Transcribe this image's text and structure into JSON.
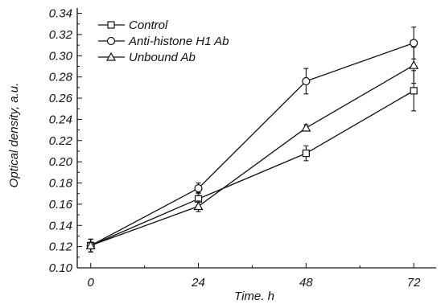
{
  "chart_data": {
    "type": "line",
    "title": "",
    "xlabel": "Time. h",
    "ylabel": "Optical density, a.u.",
    "x": [
      0,
      24,
      48,
      72
    ],
    "x_ticks": [
      "0",
      "24",
      "48",
      "72"
    ],
    "xlim": [
      -3,
      77
    ],
    "ylim": [
      0.1,
      0.345
    ],
    "y_ticks": [
      "0.10",
      "0.12",
      "0.14",
      "0.16",
      "0.18",
      "0.20",
      "0.22",
      "0.24",
      "0.26",
      "0.28",
      "0.30",
      "0.32",
      "0.34"
    ],
    "grid": false,
    "legend_position": "top-left",
    "series": [
      {
        "name": "Control",
        "marker": "square",
        "values": [
          0.121,
          0.165,
          0.208,
          0.267
        ],
        "errors": [
          0.006,
          0.006,
          0.007,
          0.019
        ]
      },
      {
        "name": "Anti-histone H1 Ab",
        "marker": "circle",
        "values": [
          0.121,
          0.175,
          0.276,
          0.312
        ],
        "errors": [
          0.006,
          0.005,
          0.012,
          0.015
        ]
      },
      {
        "name": "Unbound Ab",
        "marker": "triangle",
        "values": [
          0.121,
          0.158,
          0.232,
          0.291
        ],
        "errors": [
          0.006,
          0.005,
          0.003,
          0.017
        ]
      }
    ]
  }
}
